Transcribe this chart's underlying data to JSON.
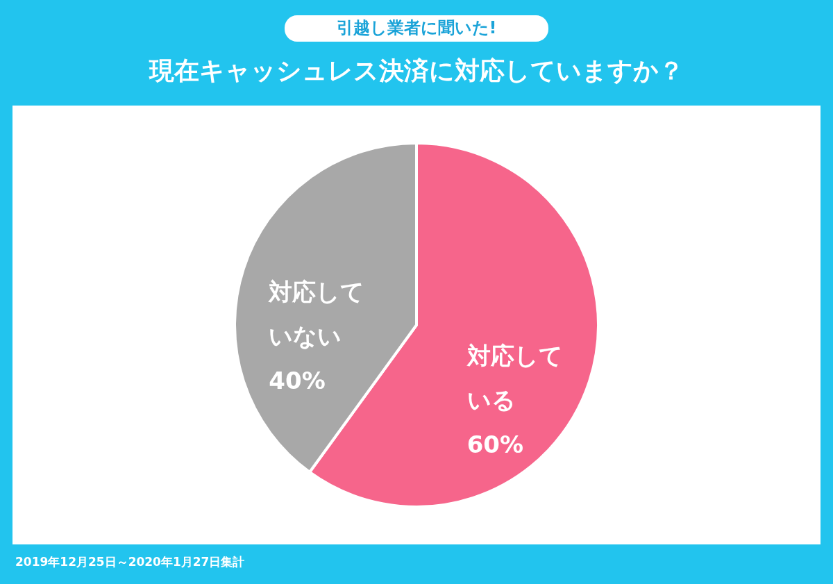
{
  "chart_data": {
    "type": "pie",
    "subtitle": "引越し業者に聞いた!",
    "title": "現在キャッシュレス決済に対応していますか？",
    "categories": [
      "対応している",
      "対応していない"
    ],
    "values": [
      60,
      40
    ],
    "value_labels": [
      "60%",
      "40%"
    ],
    "colors": [
      "#f6658b",
      "#a8a8a8"
    ],
    "annotations": [
      "2019年12月25日～2020年1月27日集計"
    ]
  }
}
